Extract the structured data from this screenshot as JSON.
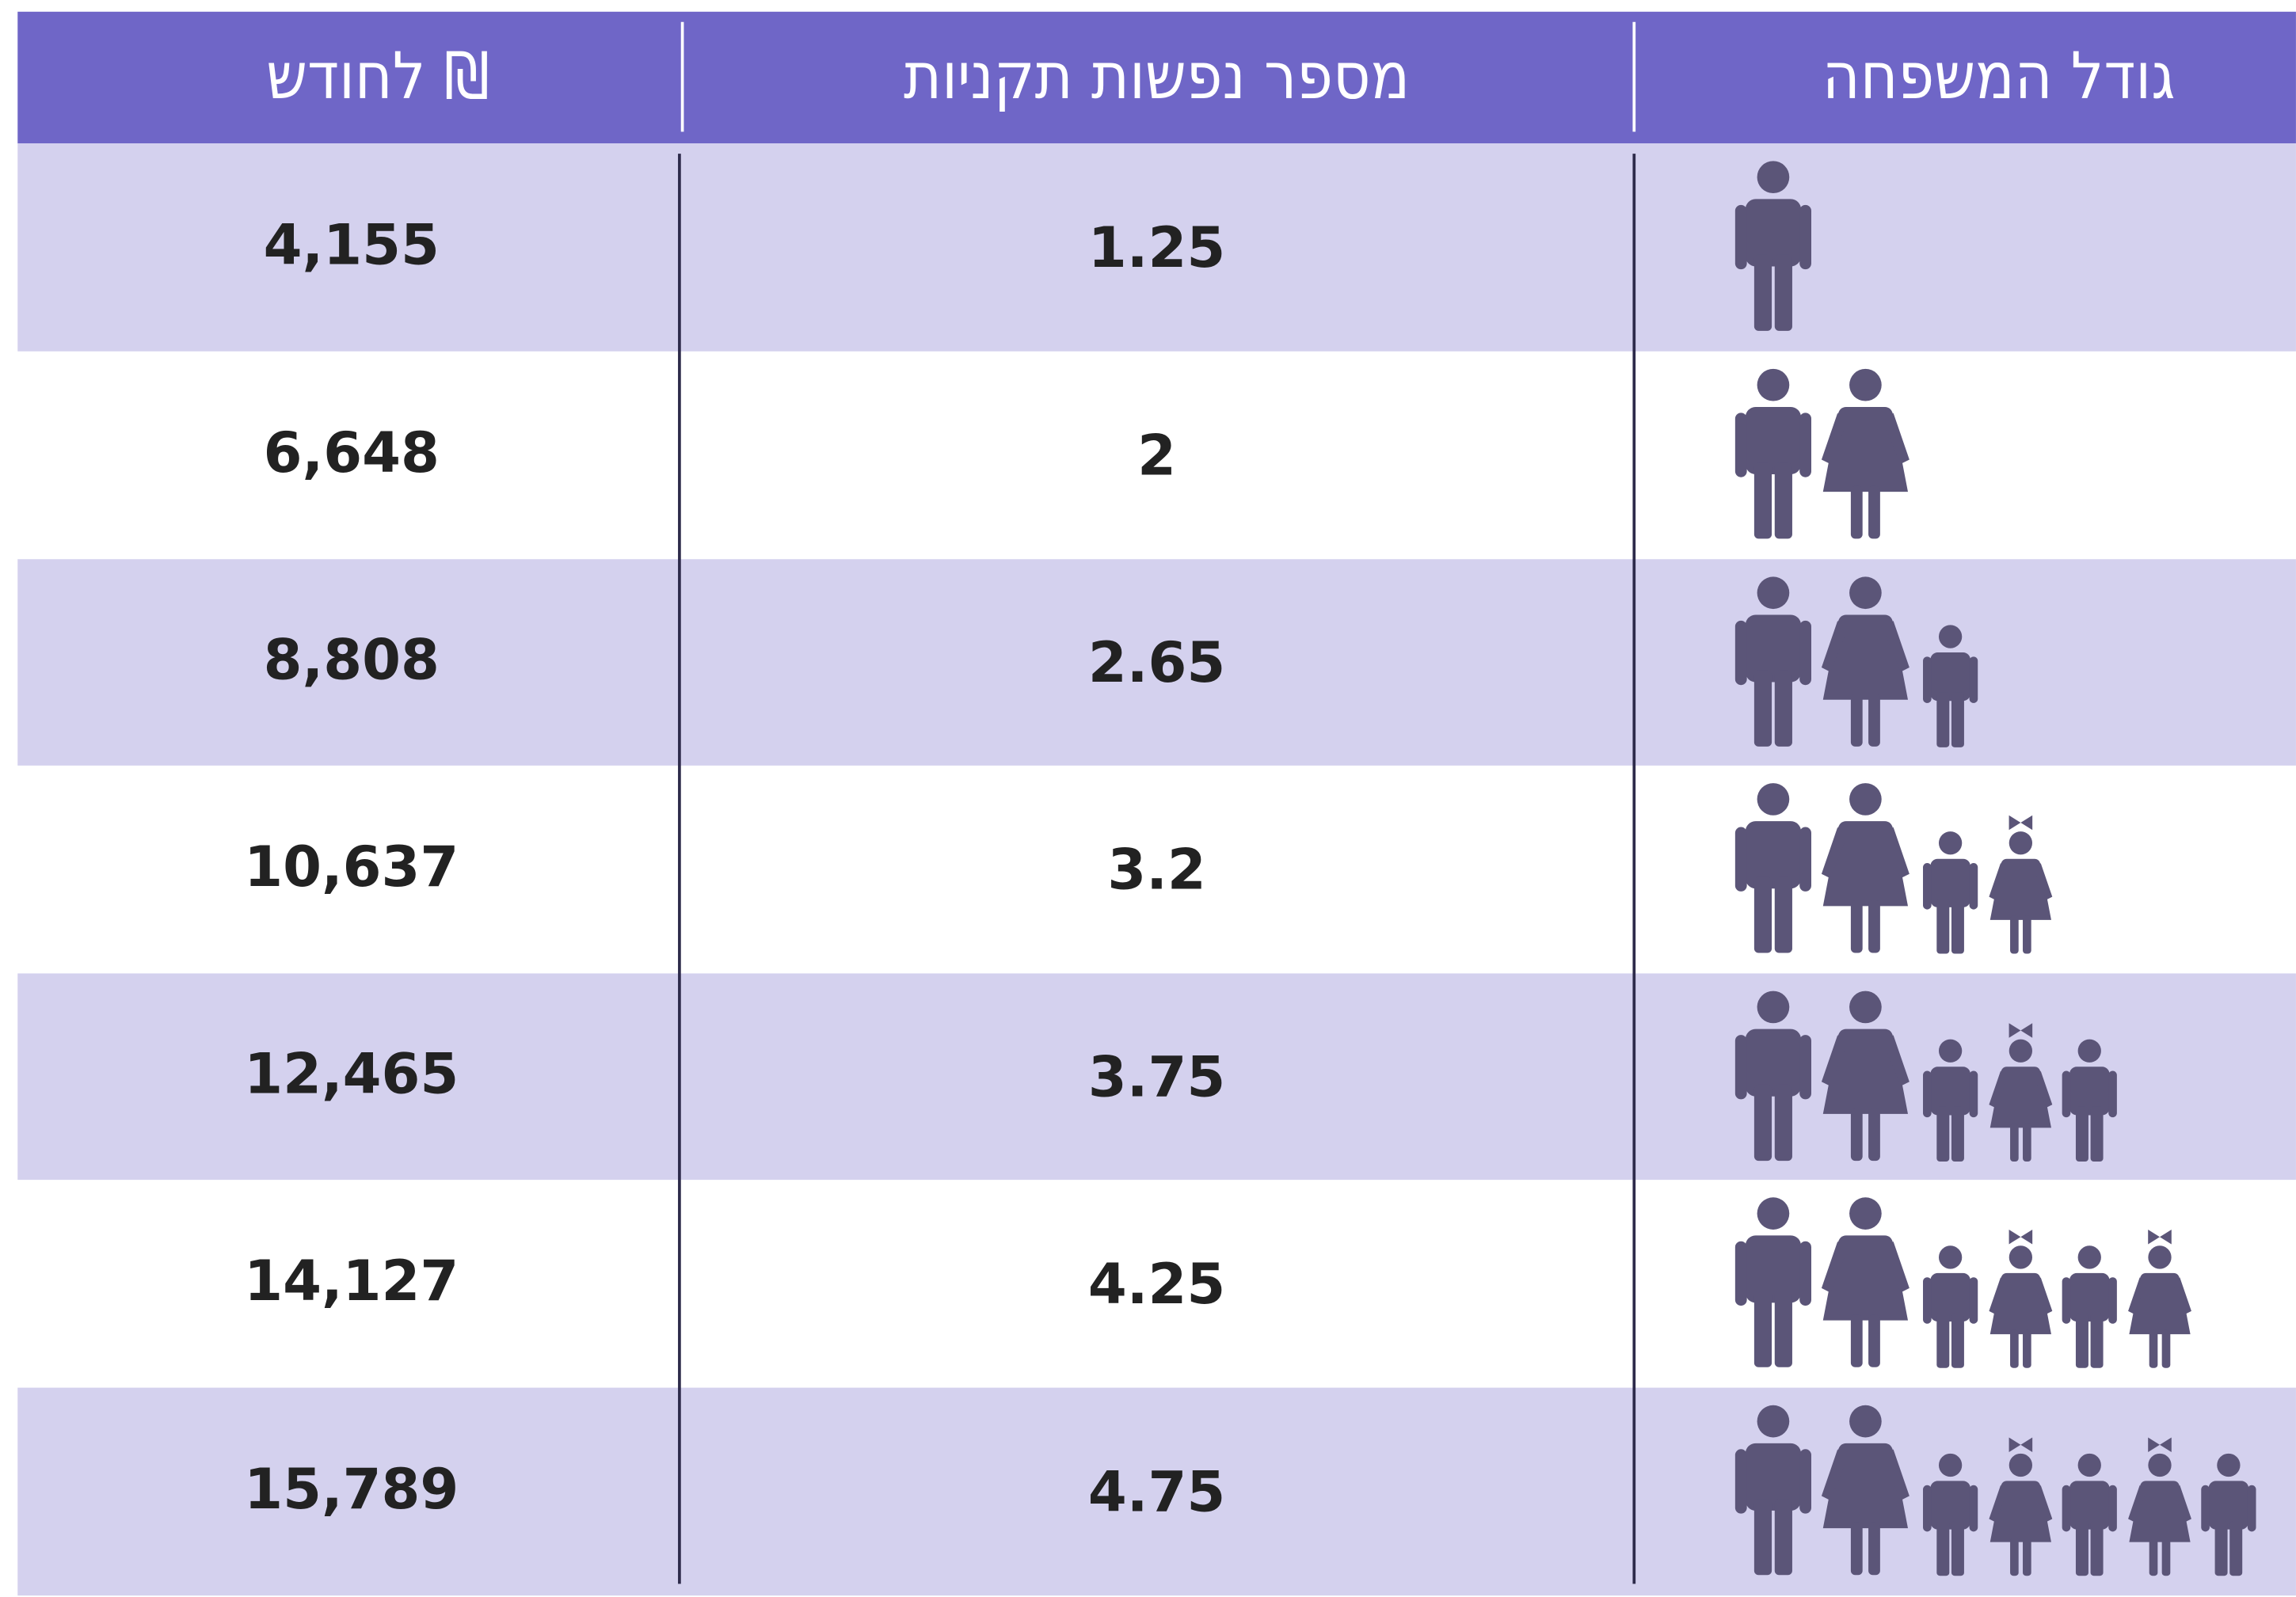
{
  "table": {
    "headers": [
      "גודל המשפחה",
      "מספר נפשות תקניות",
      "₪ לחודש"
    ],
    "rows": [
      {
        "persons": "1.25",
        "income": "4,155"
      },
      {
        "persons": "2",
        "income": "6,648"
      },
      {
        "persons": "2.65",
        "income": "8,808"
      },
      {
        "persons": "3.2",
        "income": "10,637"
      },
      {
        "persons": "3.75",
        "income": "12,465"
      },
      {
        "persons": "4.25",
        "income": "14,127"
      },
      {
        "persons": "4.75",
        "income": "15,789"
      }
    ]
  }
}
